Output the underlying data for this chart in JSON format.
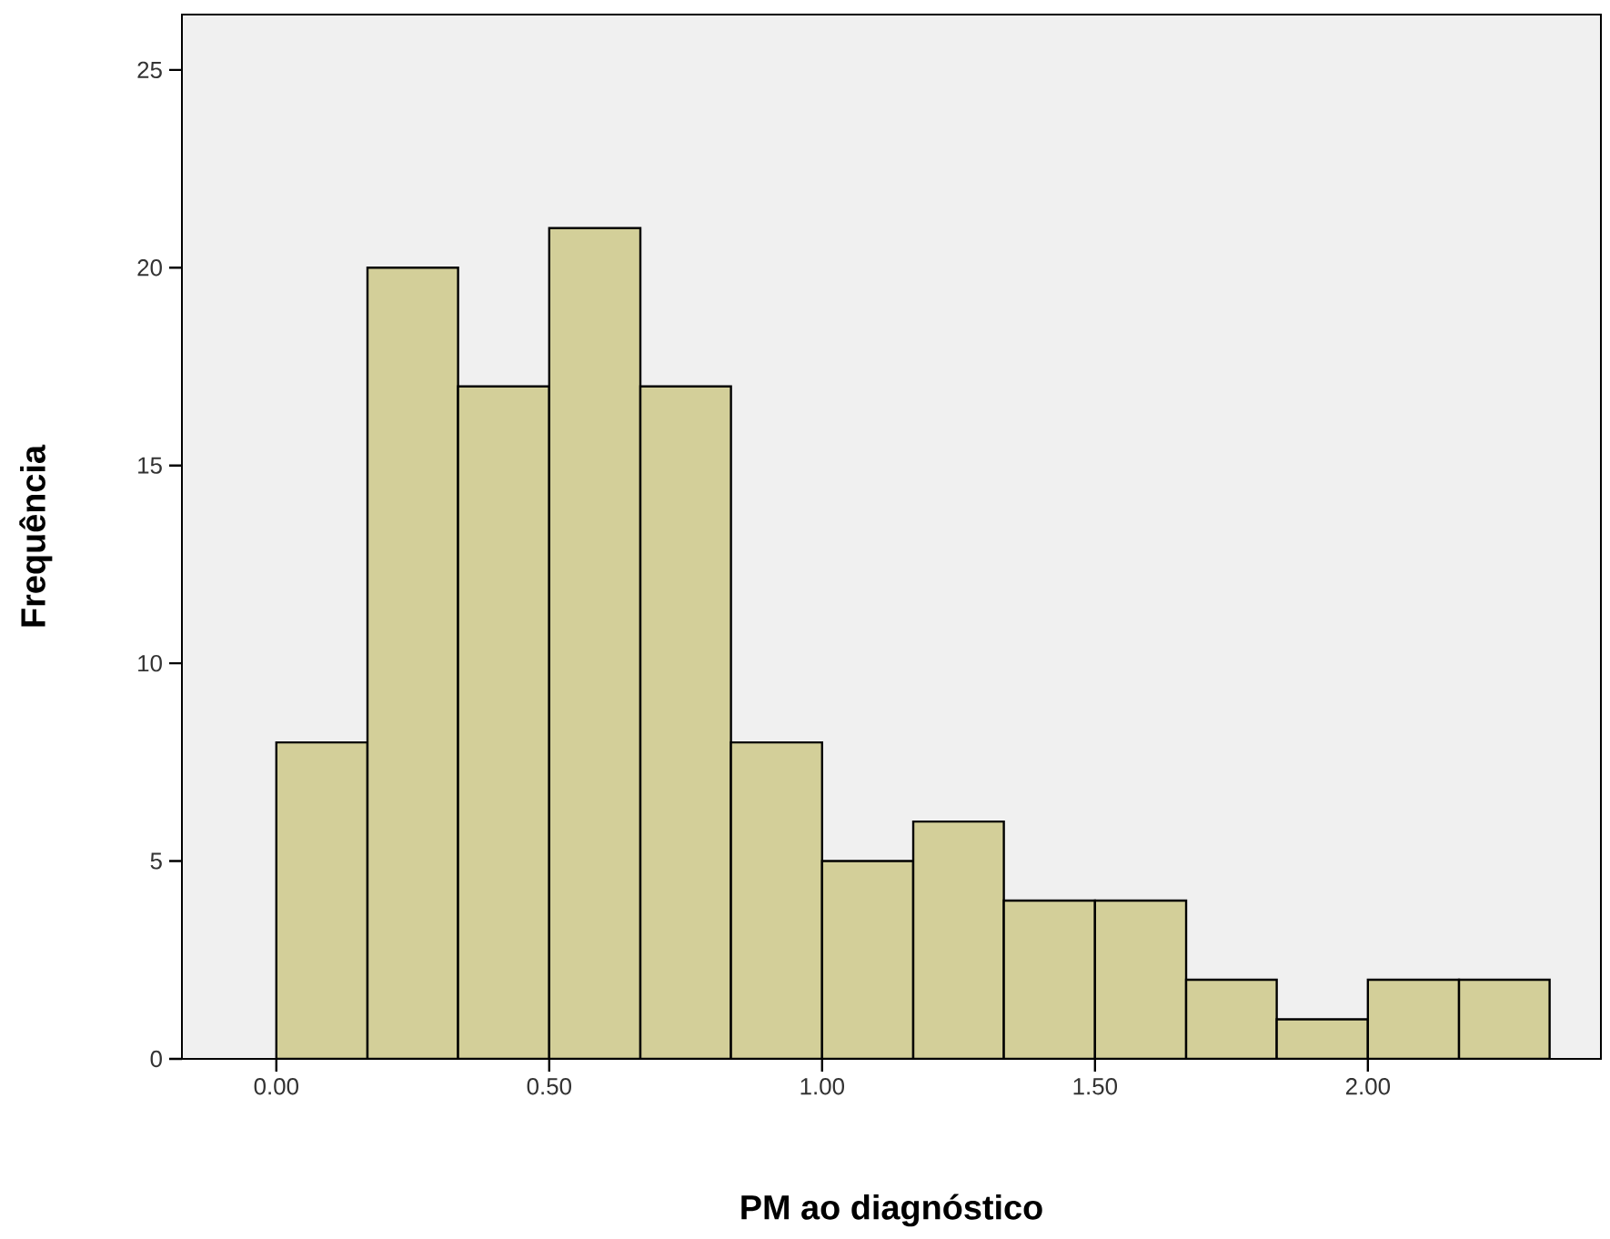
{
  "chart_data": {
    "type": "histogram",
    "xlabel": "PM ao diagnóstico",
    "ylabel": "Frequência",
    "bins": [
      0,
      0.167,
      0.333,
      0.5,
      0.667,
      0.833,
      1,
      1.167,
      1.333,
      1.5,
      1.667,
      1.833,
      2,
      2.167,
      2.333
    ],
    "values": [
      8,
      20,
      17,
      21,
      17,
      8,
      5,
      6,
      4,
      4,
      2,
      1,
      2,
      2
    ],
    "color": "#d3cf99",
    "xlim": [
      -0.173,
      2.427
    ],
    "ylim": [
      0,
      26.4
    ],
    "xticks": [
      {
        "value": 0,
        "label": "0.00"
      },
      {
        "value": 0.5,
        "label": "0.50"
      },
      {
        "value": 1,
        "label": "1.00"
      },
      {
        "value": 1.5,
        "label": "1.50"
      },
      {
        "value": 2,
        "label": "2.00"
      }
    ],
    "yticks": [
      0,
      5,
      10,
      15,
      20,
      25
    ],
    "grid": false
  }
}
